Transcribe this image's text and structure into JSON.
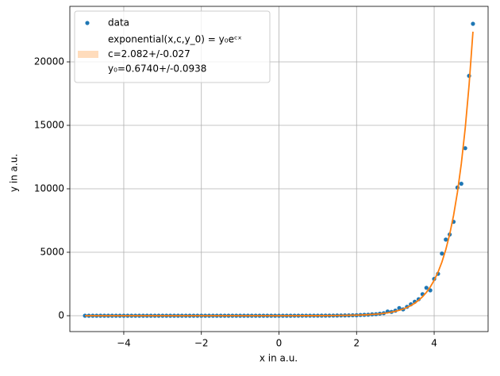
{
  "chart_data": {
    "type": "scatter_fit",
    "xlabel": "x in a.u.",
    "ylabel": "y in a.u.",
    "xlim": [
      -5.39,
      5.39
    ],
    "ylim": [
      -1250,
      24375
    ],
    "xticks": [
      {
        "value": -4,
        "label": "−4"
      },
      {
        "value": -2,
        "label": "−2"
      },
      0,
      2,
      4
    ],
    "yticks": [
      0,
      5000,
      10000,
      15000,
      20000
    ],
    "grid": true,
    "legend": "upper left",
    "series": [
      {
        "name": "data",
        "kind": "scatter",
        "color": "#1f77b4",
        "x": [
          -5.0,
          -4.9,
          -4.8,
          -4.7,
          -4.6,
          -4.5,
          -4.4,
          -4.3,
          -4.2,
          -4.1,
          -4.0,
          -3.9,
          -3.8,
          -3.7,
          -3.6,
          -3.5,
          -3.4,
          -3.3,
          -3.2,
          -3.1,
          -3.0,
          -2.9,
          -2.8,
          -2.7,
          -2.6,
          -2.5,
          -2.4,
          -2.3,
          -2.2,
          -2.1,
          -2.0,
          -1.9,
          -1.8,
          -1.7,
          -1.6,
          -1.5,
          -1.4,
          -1.3,
          -1.2,
          -1.1,
          -1.0,
          -0.9,
          -0.8,
          -0.7,
          -0.6,
          -0.5,
          -0.4,
          -0.3,
          -0.2,
          -0.1,
          0.0,
          0.1,
          0.2,
          0.3,
          0.4,
          0.5,
          0.6,
          0.7,
          0.8,
          0.9,
          1.0,
          1.1,
          1.2,
          1.3,
          1.4,
          1.5,
          1.6,
          1.7,
          1.8,
          1.9,
          2.0,
          2.1,
          2.2,
          2.3,
          2.4,
          2.5,
          2.6,
          2.7,
          2.8,
          2.9,
          3.0,
          3.1,
          3.2,
          3.3,
          3.4,
          3.5,
          3.6,
          3.7,
          3.8,
          3.9,
          4.0,
          4.1,
          4.2,
          4.3,
          4.4,
          4.5,
          4.6,
          4.7,
          4.8,
          4.9,
          5.0
        ],
        "values": [
          0,
          0,
          0,
          0,
          0,
          0,
          0,
          0,
          0,
          0,
          0,
          0,
          0,
          0,
          0,
          0,
          0,
          0,
          0,
          0,
          0,
          0,
          0,
          0,
          0,
          0,
          0,
          0,
          0,
          0,
          0,
          0,
          0,
          0,
          0,
          0,
          0,
          0,
          0,
          0,
          0,
          0,
          0,
          0,
          0,
          0,
          0,
          0,
          0,
          0,
          1,
          1,
          1,
          1,
          2,
          2,
          2,
          3,
          4,
          4,
          5,
          6,
          8,
          10,
          12,
          15,
          19,
          23,
          28,
          35,
          40,
          60,
          70,
          80,
          110,
          120,
          160,
          200,
          330,
          300,
          400,
          600,
          500,
          700,
          900,
          1100,
          1300,
          1700,
          2200,
          2000,
          2900,
          3300,
          4900,
          6000,
          6400,
          7400,
          10100,
          10400,
          13200,
          18900,
          23000
        ]
      },
      {
        "name": [
          "exponential(x,c,y_0) = y₀eᶜˣ",
          "c=2.082+/-0.027",
          "y₀=0.6740+/-0.0938"
        ],
        "kind": "line",
        "color": "#ff7f0e",
        "band_color": "#ffdcbc",
        "x": [
          -5,
          -3,
          -2,
          -1,
          0,
          0.5,
          1,
          1.5,
          2.0,
          2.1,
          2.2,
          2.3,
          2.4,
          2.5,
          2.6,
          2.7,
          2.8,
          2.9,
          3.0,
          3.1,
          3.2,
          3.3,
          3.4,
          3.5,
          3.6,
          3.7,
          3.8,
          3.9,
          4.0,
          4.1,
          4.2,
          4.3,
          4.4,
          4.5,
          4.6,
          4.7,
          4.8,
          4.9,
          5.0
        ],
        "values": [
          0,
          0,
          0.01,
          0.08,
          0.67,
          1.9,
          5.4,
          15.3,
          43,
          53,
          66,
          81,
          100,
          123,
          151,
          186,
          229,
          282,
          348,
          428,
          527,
          650,
          800,
          985,
          1213,
          1494,
          1839,
          2265,
          2790,
          3435,
          4231,
          5210,
          6416,
          7902,
          9731,
          11984,
          14758,
          18174,
          22382
        ]
      }
    ]
  }
}
